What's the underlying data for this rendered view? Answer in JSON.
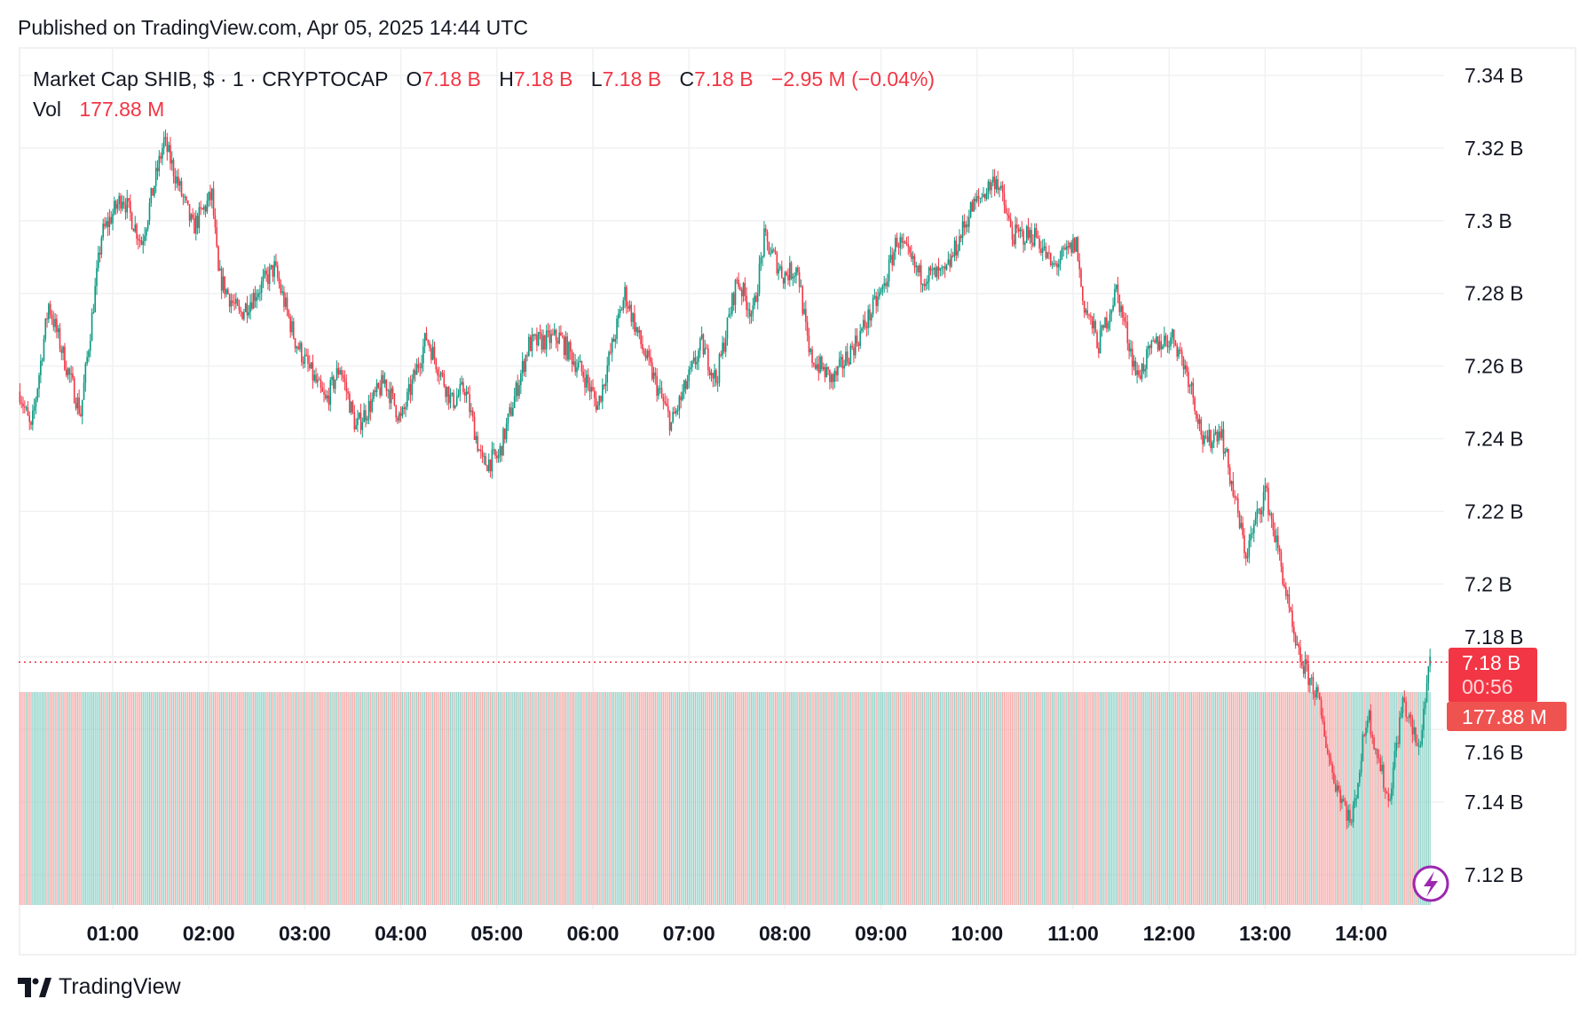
{
  "published": "Published on TradingView.com, Apr 05, 2025 14:44 UTC",
  "legend": {
    "symbol": "Market Cap SHIB, $ · 1 · CRYPTOCAP",
    "o_label": "O",
    "o": "7.18 B",
    "h_label": "H",
    "h": "7.18 B",
    "l_label": "L",
    "l": "7.18 B",
    "c_label": "C",
    "c": "7.18 B",
    "change": "−2.95 M (−0.04%)",
    "vol_label": "Vol",
    "vol": "177.88 M"
  },
  "price_badge": {
    "price": "7.18 B",
    "countdown": "00:56"
  },
  "volume_badge": "177.88 M",
  "brand": "TradingView",
  "colors": {
    "up": "#089981",
    "down": "#f23645",
    "vol_up": "#8fd3c9",
    "vol_down": "#f7a9a7",
    "grid": "#f0f1f3",
    "badge_price": "#f23645",
    "badge_volume": "#ef5350",
    "lightning": "#9c27b0"
  },
  "chart_data": {
    "type": "candlestick",
    "interval": "1 minute",
    "y_unit": "B",
    "ylim": [
      7.11,
      7.35
    ],
    "y_ticks": [
      "7.34 B",
      "7.32 B",
      "7.3 B",
      "7.28 B",
      "7.26 B",
      "7.24 B",
      "7.22 B",
      "7.2 B",
      "7.18 B",
      "7.16 B",
      "7.14 B",
      "7.12 B"
    ],
    "y_tick_values": [
      7.34,
      7.32,
      7.3,
      7.28,
      7.26,
      7.24,
      7.22,
      7.2,
      7.18,
      7.16,
      7.14,
      7.12
    ],
    "x_ticks": [
      "01:00",
      "02:00",
      "03:00",
      "04:00",
      "05:00",
      "06:00",
      "07:00",
      "08:00",
      "09:00",
      "10:00",
      "11:00",
      "12:00",
      "13:00",
      "14:00"
    ],
    "grid": true,
    "last_price": 7.18,
    "approx_close_path": [
      [
        "00:02",
        7.253
      ],
      [
        "00:09",
        7.242
      ],
      [
        "00:20",
        7.277
      ],
      [
        "00:31",
        7.26
      ],
      [
        "00:40",
        7.247
      ],
      [
        "00:53",
        7.296
      ],
      [
        "01:06",
        7.307
      ],
      [
        "01:18",
        7.294
      ],
      [
        "01:32",
        7.322
      ],
      [
        "01:50",
        7.298
      ],
      [
        "02:02",
        7.307
      ],
      [
        "02:06",
        7.285
      ],
      [
        "02:19",
        7.274
      ],
      [
        "02:41",
        7.287
      ],
      [
        "02:54",
        7.267
      ],
      [
        "03:13",
        7.25
      ],
      [
        "03:22",
        7.26
      ],
      [
        "03:32",
        7.243
      ],
      [
        "03:50",
        7.256
      ],
      [
        "04:00",
        7.245
      ],
      [
        "04:16",
        7.268
      ],
      [
        "04:32",
        7.25
      ],
      [
        "04:40",
        7.254
      ],
      [
        "04:51",
        7.233
      ],
      [
        "05:01",
        7.235
      ],
      [
        "05:20",
        7.266
      ],
      [
        "05:39",
        7.268
      ],
      [
        "05:55",
        7.257
      ],
      [
        "06:03",
        7.249
      ],
      [
        "06:20",
        7.28
      ],
      [
        "06:30",
        7.266
      ],
      [
        "06:49",
        7.244
      ],
      [
        "07:08",
        7.266
      ],
      [
        "07:17",
        7.256
      ],
      [
        "07:30",
        7.284
      ],
      [
        "07:40",
        7.274
      ],
      [
        "07:47",
        7.295
      ],
      [
        "07:59",
        7.285
      ],
      [
        "08:08",
        7.287
      ],
      [
        "08:15",
        7.263
      ],
      [
        "08:30",
        7.256
      ],
      [
        "08:46",
        7.268
      ],
      [
        "09:02",
        7.282
      ],
      [
        "09:10",
        7.295
      ],
      [
        "09:24",
        7.285
      ],
      [
        "09:40",
        7.285
      ],
      [
        "09:56",
        7.303
      ],
      [
        "10:12",
        7.312
      ],
      [
        "10:22",
        7.296
      ],
      [
        "10:37",
        7.296
      ],
      [
        "10:47",
        7.287
      ],
      [
        "11:02",
        7.294
      ],
      [
        "11:06",
        7.278
      ],
      [
        "11:16",
        7.266
      ],
      [
        "11:27",
        7.281
      ],
      [
        "11:40",
        7.257
      ],
      [
        "11:51",
        7.266
      ],
      [
        "12:03",
        7.268
      ],
      [
        "12:13",
        7.256
      ],
      [
        "12:22",
        7.238
      ],
      [
        "12:32",
        7.243
      ],
      [
        "12:48",
        7.208
      ],
      [
        "13:00",
        7.226
      ],
      [
        "13:10",
        7.205
      ],
      [
        "13:19",
        7.182
      ],
      [
        "13:32",
        7.17
      ],
      [
        "13:42",
        7.148
      ],
      [
        "13:54",
        7.134
      ],
      [
        "14:04",
        7.165
      ],
      [
        "14:17",
        7.14
      ],
      [
        "14:26",
        7.168
      ],
      [
        "14:36",
        7.154
      ],
      [
        "14:43",
        7.18
      ]
    ]
  }
}
